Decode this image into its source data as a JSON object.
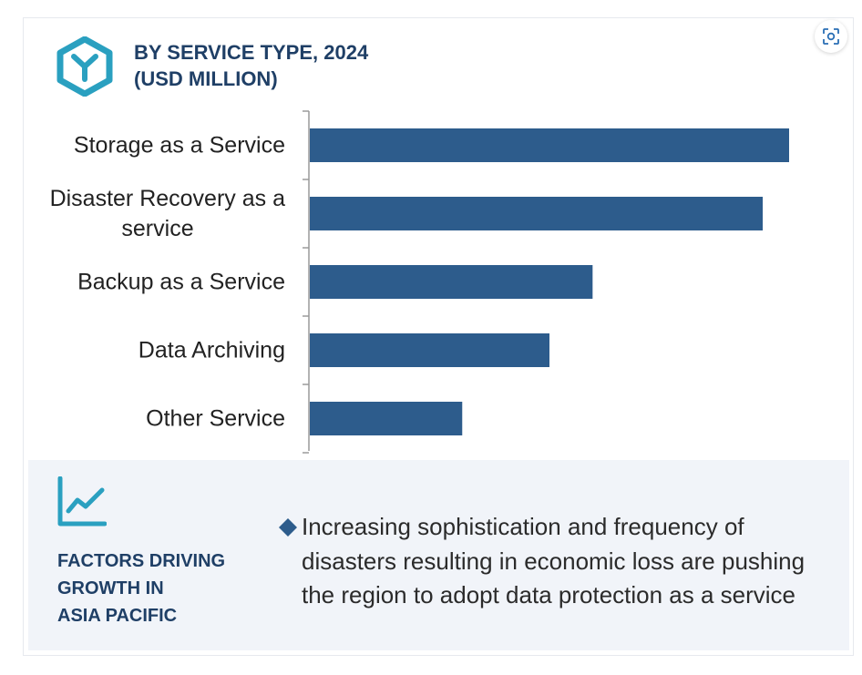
{
  "header": {
    "title_line1": "BY SERVICE TYPE, 2024",
    "title_line2": "(USD MILLION)",
    "logo_icon": "hexagon-y-logo-icon",
    "expand_icon": "expand-icon"
  },
  "colors": {
    "bar": "#2d5c8c",
    "title": "#1f3f66",
    "accent": "#2aa0c0",
    "panel_bg": "#f1f4f9",
    "axis": "#9a9a9a"
  },
  "chart_data": {
    "type": "bar",
    "orientation": "horizontal",
    "title": "BY SERVICE TYPE, 2024 (USD MILLION)",
    "categories": [
      [
        "Storage as a Service"
      ],
      [
        "Disaster Recovery as a",
        "service"
      ],
      [
        "Backup as a Service"
      ],
      [
        "Data Archiving"
      ],
      [
        "Other Service"
      ]
    ],
    "values": [
      100,
      94.5,
      59,
      50,
      31.8
    ],
    "xlim": [
      0,
      100
    ],
    "grid": false,
    "value_axis_labels": false
  },
  "factors": {
    "icon": "trend-line-icon",
    "title_line1": "FACTORS DRIVING",
    "title_line2": "GROWTH IN",
    "title_line3": "ASIA PACIFIC",
    "bullet_icon": "diamond-bullet-icon",
    "text": "Increasing sophistication and frequency of disasters resulting in economic loss are pushing the region to adopt data protection as a service"
  }
}
